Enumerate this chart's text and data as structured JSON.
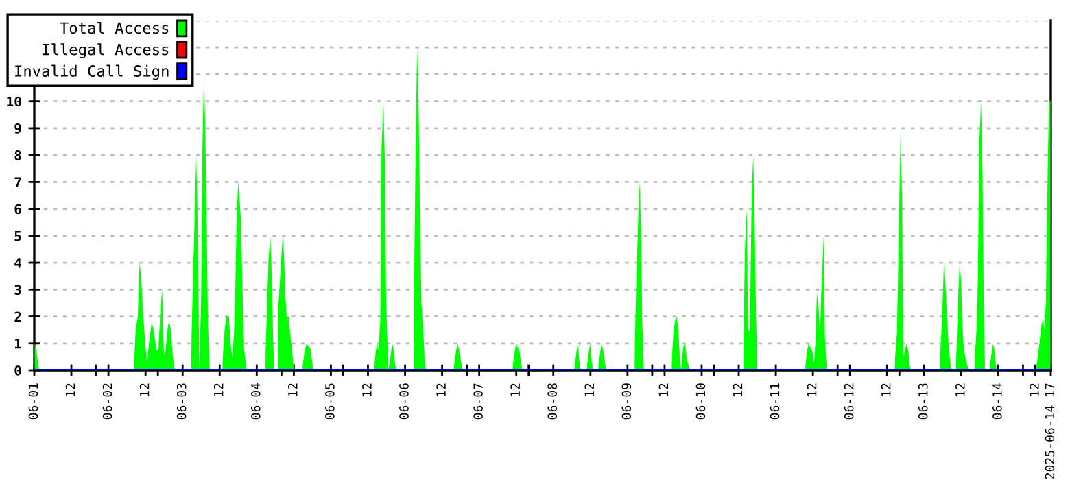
{
  "chart_data": {
    "type": "area",
    "series": [
      {
        "name": "Total Access",
        "color": "#00ff00",
        "x": [
          "2025-06-01T00:06",
          "2025-06-01T00:42",
          "2025-06-01T01:12",
          "2025-06-01T01:42",
          "2025-06-02T08:18",
          "2025-06-02T08:24",
          "2025-06-02T08:48",
          "2025-06-02T09:30",
          "2025-06-02T10:06",
          "2025-06-02T10:36",
          "2025-06-02T11:00",
          "2025-06-02T11:36",
          "2025-06-02T12:06",
          "2025-06-02T12:30",
          "2025-06-02T12:54",
          "2025-06-02T13:24",
          "2025-06-02T14:00",
          "2025-06-02T14:36",
          "2025-06-02T15:00",
          "2025-06-02T15:36",
          "2025-06-02T16:12",
          "2025-06-02T16:48",
          "2025-06-02T17:24",
          "2025-06-02T17:54",
          "2025-06-02T18:18",
          "2025-06-02T18:42",
          "2025-06-02T19:18",
          "2025-06-02T19:48",
          "2025-06-02T20:12",
          "2025-06-02T20:42",
          "2025-06-02T21:06",
          "2025-06-02T21:36",
          "2025-06-03T02:48",
          "2025-06-03T02:54",
          "2025-06-03T03:30",
          "2025-06-03T04:06",
          "2025-06-03T04:24",
          "2025-06-03T04:48",
          "2025-06-03T05:24",
          "2025-06-03T06:00",
          "2025-06-03T06:24",
          "2025-06-03T06:54",
          "2025-06-03T07:18",
          "2025-06-03T07:48",
          "2025-06-03T08:12",
          "2025-06-03T08:48",
          "2025-06-03T12:54",
          "2025-06-03T13:00",
          "2025-06-03T13:36",
          "2025-06-03T14:06",
          "2025-06-03T15:00",
          "2025-06-03T15:30",
          "2025-06-03T16:06",
          "2025-06-03T16:42",
          "2025-06-03T17:06",
          "2025-06-03T17:30",
          "2025-06-03T18:00",
          "2025-06-03T18:24",
          "2025-06-03T18:54",
          "2025-06-03T19:30",
          "2025-06-03T19:54",
          "2025-06-03T20:42",
          "2025-06-04T02:48",
          "2025-06-04T02:54",
          "2025-06-04T03:48",
          "2025-06-04T04:24",
          "2025-06-04T04:48",
          "2025-06-04T05:18",
          "2025-06-04T05:42",
          "2025-06-04T06:54",
          "2025-06-04T07:00",
          "2025-06-04T07:54",
          "2025-06-04T08:24",
          "2025-06-04T08:48",
          "2025-06-04T09:18",
          "2025-06-04T09:42",
          "2025-06-04T10:18",
          "2025-06-04T10:42",
          "2025-06-04T11:18",
          "2025-06-04T11:48",
          "2025-06-04T12:12",
          "2025-06-04T14:48",
          "2025-06-04T14:54",
          "2025-06-04T15:30",
          "2025-06-04T16:06",
          "2025-06-04T17:24",
          "2025-06-04T18:00",
          "2025-06-04T18:24",
          "2025-06-05T14:00",
          "2025-06-05T14:06",
          "2025-06-05T14:30",
          "2025-06-05T15:00",
          "2025-06-05T15:24",
          "2025-06-05T16:00",
          "2025-06-05T16:24",
          "2025-06-05T17:00",
          "2025-06-05T17:30",
          "2025-06-05T17:54",
          "2025-06-05T18:36",
          "2025-06-05T18:54",
          "2025-06-05T19:30",
          "2025-06-05T19:54",
          "2025-06-05T20:24",
          "2025-06-05T20:48",
          "2025-06-05T21:18",
          "2025-06-06T02:48",
          "2025-06-06T02:54",
          "2025-06-06T03:30",
          "2025-06-06T03:54",
          "2025-06-06T04:24",
          "2025-06-06T04:54",
          "2025-06-06T05:18",
          "2025-06-06T05:54",
          "2025-06-06T06:18",
          "2025-06-06T06:48",
          "2025-06-06T15:48",
          "2025-06-06T15:54",
          "2025-06-06T16:30",
          "2025-06-06T17:00",
          "2025-06-06T17:24",
          "2025-06-06T17:54",
          "2025-06-06T18:18",
          "2025-06-06T18:42",
          "2025-06-07T10:48",
          "2025-06-07T10:54",
          "2025-06-07T11:30",
          "2025-06-07T11:54",
          "2025-06-07T13:06",
          "2025-06-07T13:36",
          "2025-06-07T14:00",
          "2025-06-08T06:48",
          "2025-06-08T06:54",
          "2025-06-08T07:30",
          "2025-06-08T07:54",
          "2025-06-08T08:30",
          "2025-06-08T08:54",
          "2025-06-08T10:48",
          "2025-06-08T10:54",
          "2025-06-08T11:30",
          "2025-06-08T11:54",
          "2025-06-08T12:30",
          "2025-06-08T12:54",
          "2025-06-08T14:30",
          "2025-06-08T14:36",
          "2025-06-08T15:12",
          "2025-06-08T15:36",
          "2025-06-08T16:12",
          "2025-06-08T16:42",
          "2025-06-08T17:12",
          "2025-06-09T02:18",
          "2025-06-09T02:24",
          "2025-06-09T02:54",
          "2025-06-09T03:30",
          "2025-06-09T03:54",
          "2025-06-09T04:24",
          "2025-06-09T04:48",
          "2025-06-09T05:18",
          "2025-06-09T14:18",
          "2025-06-09T14:24",
          "2025-06-09T14:54",
          "2025-06-09T15:30",
          "2025-06-09T15:54",
          "2025-06-09T16:30",
          "2025-06-09T16:54",
          "2025-06-09T17:24",
          "2025-06-09T17:42",
          "2025-06-09T18:06",
          "2025-06-09T18:42",
          "2025-06-09T19:06",
          "2025-06-09T19:42",
          "2025-06-09T20:18",
          "2025-06-10T13:30",
          "2025-06-10T13:36",
          "2025-06-10T14:00",
          "2025-06-10T14:36",
          "2025-06-10T15:00",
          "2025-06-10T15:36",
          "2025-06-10T16:12",
          "2025-06-10T16:42",
          "2025-06-10T17:06",
          "2025-06-10T17:36",
          "2025-06-10T18:00",
          "2025-06-11T09:30",
          "2025-06-11T09:36",
          "2025-06-11T10:06",
          "2025-06-11T10:36",
          "2025-06-11T11:48",
          "2025-06-11T12:24",
          "2025-06-11T12:48",
          "2025-06-11T13:18",
          "2025-06-11T13:54",
          "2025-06-11T14:18",
          "2025-06-11T14:42",
          "2025-06-11T15:00",
          "2025-06-11T15:30",
          "2025-06-11T15:54",
          "2025-06-11T16:30",
          "2025-06-12T14:30",
          "2025-06-12T14:36",
          "2025-06-12T15:12",
          "2025-06-12T15:36",
          "2025-06-12T16:06",
          "2025-06-12T16:24",
          "2025-06-12T16:48",
          "2025-06-12T17:18",
          "2025-06-12T17:54",
          "2025-06-12T18:18",
          "2025-06-12T18:54",
          "2025-06-12T19:18",
          "2025-06-12T19:48",
          "2025-06-13T05:06",
          "2025-06-13T05:12",
          "2025-06-13T05:48",
          "2025-06-13T06:24",
          "2025-06-13T06:48",
          "2025-06-13T07:24",
          "2025-06-13T07:54",
          "2025-06-13T08:18",
          "2025-06-13T08:48",
          "2025-06-13T10:18",
          "2025-06-13T10:24",
          "2025-06-13T10:54",
          "2025-06-13T11:30",
          "2025-06-13T11:54",
          "2025-06-13T12:24",
          "2025-06-13T12:48",
          "2025-06-13T13:18",
          "2025-06-13T13:54",
          "2025-06-13T14:18",
          "2025-06-13T14:42",
          "2025-06-13T16:18",
          "2025-06-13T16:24",
          "2025-06-13T17:00",
          "2025-06-13T17:24",
          "2025-06-13T17:54",
          "2025-06-13T18:24",
          "2025-06-13T18:54",
          "2025-06-13T19:18",
          "2025-06-13T19:42",
          "2025-06-13T21:12",
          "2025-06-13T21:18",
          "2025-06-13T21:54",
          "2025-06-13T22:18",
          "2025-06-13T22:48",
          "2025-06-13T23:12",
          "2025-06-13T23:42",
          "2025-06-14T12:18",
          "2025-06-14T12:24",
          "2025-06-14T13:00",
          "2025-06-14T13:36",
          "2025-06-14T14:00",
          "2025-06-14T14:30",
          "2025-06-14T14:54",
          "2025-06-14T15:24",
          "2025-06-14T16:00",
          "2025-06-14T16:24",
          "2025-06-14T16:54"
        ],
        "values": [
          1,
          0.75,
          0.25,
          0,
          0,
          0.5,
          1.5,
          2,
          4,
          3.5,
          2.5,
          1.5,
          0.75,
          0.25,
          0.75,
          1.25,
          1.8,
          1.5,
          1.2,
          0.75,
          0.75,
          2.25,
          3,
          0.75,
          0.5,
          1,
          1.7,
          1.75,
          1.5,
          0.75,
          0.25,
          0,
          0,
          1.3,
          4,
          6.6,
          8,
          6,
          0,
          2.7,
          8.2,
          11,
          9.2,
          5.5,
          1.8,
          0,
          0,
          0.5,
          1.5,
          2,
          2,
          1,
          0.5,
          1.5,
          3.2,
          5.7,
          7,
          6.5,
          5.5,
          2.5,
          0.8,
          0,
          0,
          0.8,
          4.1,
          5,
          3.7,
          1.2,
          0,
          0,
          2.4,
          4.1,
          5,
          4.3,
          2.7,
          2,
          2,
          1.5,
          0.9,
          0.3,
          0,
          0,
          0.2,
          0.7,
          1,
          0.8,
          0.25,
          0,
          0,
          0.2,
          0.7,
          1,
          0.7,
          1.9,
          8.3,
          10,
          7.5,
          2.5,
          0,
          0.2,
          0.7,
          1,
          0.7,
          0.2,
          0,
          0,
          3,
          9,
          12,
          9.7,
          5.3,
          2.5,
          1.5,
          0.5,
          0,
          0,
          0.2,
          0.7,
          1,
          0.8,
          0.5,
          0.2,
          0,
          0,
          0.2,
          0.7,
          1,
          0.7,
          0.25,
          0,
          0,
          0.2,
          0.7,
          1,
          0.25,
          0,
          0,
          0.2,
          0.7,
          1,
          0.25,
          0,
          0,
          0.2,
          0.7,
          1,
          0.7,
          0.25,
          0,
          0,
          1.1,
          3.5,
          5.8,
          7,
          5.2,
          1.7,
          0,
          0,
          0.5,
          1.5,
          1.9,
          2,
          1.5,
          0.5,
          0,
          0.5,
          0.9,
          1,
          0.5,
          0.2,
          0,
          0,
          1.5,
          4.5,
          6,
          1.5,
          1.5,
          6.6,
          8,
          5.9,
          2,
          0,
          0,
          0.2,
          0.7,
          1,
          0.7,
          0.3,
          1,
          2.9,
          2.2,
          1.2,
          2.9,
          3.7,
          5,
          1.2,
          0,
          0,
          0.5,
          1.4,
          3.7,
          7.2,
          9,
          6.7,
          0.5,
          0.8,
          1,
          0.7,
          0.2,
          0,
          0,
          0.6,
          1.9,
          4,
          3.4,
          2,
          1,
          0.5,
          0,
          0,
          0.5,
          2.4,
          4,
          3.4,
          1.7,
          0.9,
          0.5,
          0.2,
          0.1,
          0,
          0,
          0.5,
          1.6,
          3.3,
          8.6,
          10,
          7.4,
          2.5,
          0,
          0,
          0.2,
          0.7,
          1,
          0.7,
          0.2,
          0,
          0,
          0.2,
          0.7,
          1.3,
          1.7,
          1.9,
          1.5,
          2.5,
          7.4,
          10,
          10
        ]
      },
      {
        "name": "Illegal Access",
        "type": "line",
        "color": "#ff0000"
      },
      {
        "name": "Invalid Call Sign",
        "type": "line",
        "color": "#0000ff",
        "x": [
          "2025-06-01T00:00",
          "2025-06-14T17:00"
        ],
        "values": [
          0,
          0
        ]
      }
    ],
    "xlim": [
      "2025-06-01T00:00",
      "2025-06-14T17:00"
    ],
    "xticks": [
      {
        "value": "2025-06-01T00:00",
        "label": "06-01"
      },
      {
        "value": "2025-06-01T12:00",
        "label": "12"
      },
      {
        "value": "2025-06-02T00:00",
        "label": "06-02"
      },
      {
        "value": "2025-06-02T12:00",
        "label": "12"
      },
      {
        "value": "2025-06-03T00:00",
        "label": "06-03"
      },
      {
        "value": "2025-06-03T12:00",
        "label": "12"
      },
      {
        "value": "2025-06-04T00:00",
        "label": "06-04"
      },
      {
        "value": "2025-06-04T12:00",
        "label": "12"
      },
      {
        "value": "2025-06-05T00:00",
        "label": "06-05"
      },
      {
        "value": "2025-06-05T12:00",
        "label": "12"
      },
      {
        "value": "2025-06-06T00:00",
        "label": "06-06"
      },
      {
        "value": "2025-06-06T12:00",
        "label": "12"
      },
      {
        "value": "2025-06-07T00:00",
        "label": "06-07"
      },
      {
        "value": "2025-06-07T12:00",
        "label": "12"
      },
      {
        "value": "2025-06-08T00:00",
        "label": "06-08"
      },
      {
        "value": "2025-06-08T12:00",
        "label": "12"
      },
      {
        "value": "2025-06-09T00:00",
        "label": "06-09"
      },
      {
        "value": "2025-06-09T12:00",
        "label": "12"
      },
      {
        "value": "2025-06-10T00:00",
        "label": "06-10"
      },
      {
        "value": "2025-06-10T12:00",
        "label": "12"
      },
      {
        "value": "2025-06-11T00:00",
        "label": "06-11"
      },
      {
        "value": "2025-06-11T12:00",
        "label": "12"
      },
      {
        "value": "2025-06-12T00:00",
        "label": "06-12"
      },
      {
        "value": "2025-06-12T12:00",
        "label": "12"
      },
      {
        "value": "2025-06-13T00:00",
        "label": "06-13"
      },
      {
        "value": "2025-06-13T12:00",
        "label": "12"
      },
      {
        "value": "2025-06-14T00:00",
        "label": "06-14"
      },
      {
        "value": "2025-06-14T12:00",
        "label": "12"
      },
      {
        "value": "2025-06-14T17:00",
        "label": "2025-06-14 17"
      },
      {
        "value": "2025-06-01T20:00",
        "label": null
      },
      {
        "value": "2025-06-02T16:00",
        "label": null
      },
      {
        "value": "2025-06-04T08:00",
        "label": null
      },
      {
        "value": "2025-06-05T04:00",
        "label": null
      },
      {
        "value": "2025-06-06T20:00",
        "label": null
      },
      {
        "value": "2025-06-07T16:00",
        "label": null
      },
      {
        "value": "2025-06-09T08:00",
        "label": null
      },
      {
        "value": "2025-06-10T04:00",
        "label": null
      },
      {
        "value": "2025-06-11T20:00",
        "label": null
      },
      {
        "value": "2025-06-12T16:00",
        "label": null
      },
      {
        "value": "2025-06-14T08:00",
        "label": null
      }
    ],
    "ylim": [
      0,
      13
    ],
    "yticks": [
      0,
      1,
      2,
      3,
      4,
      5,
      6,
      7,
      8,
      9,
      10,
      {
        "value": 11,
        "label": null
      },
      {
        "value": 12,
        "label": null
      },
      {
        "value": 13,
        "label": null
      }
    ],
    "grid": "y",
    "legend": "top left"
  }
}
